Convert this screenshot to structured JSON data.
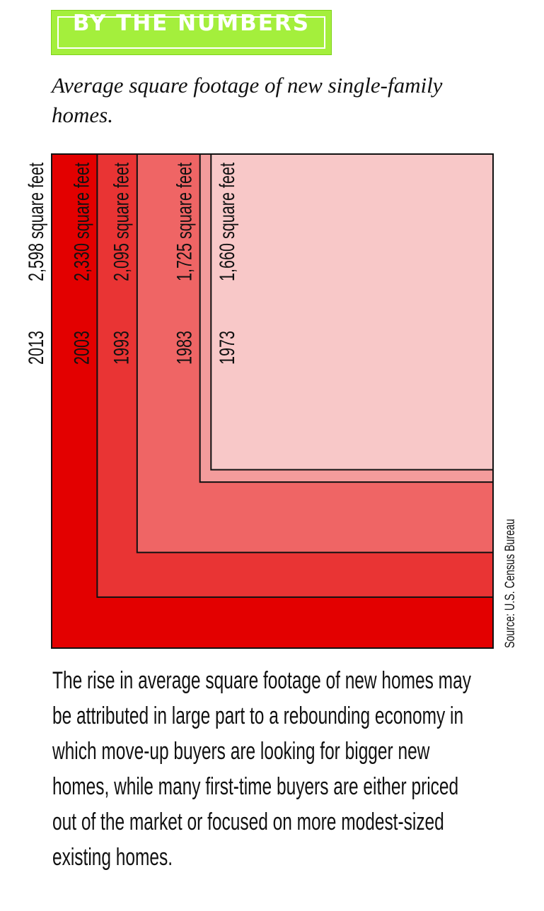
{
  "header": {
    "title": "BY THE NUMBERS",
    "subtitle": "Average square footage of new single-family homes."
  },
  "chart_data": {
    "type": "nested-rect",
    "categories": [
      "2013",
      "2003",
      "1993",
      "1983",
      "1973"
    ],
    "values": [
      2598,
      2330,
      2095,
      1725,
      1660
    ],
    "value_labels": [
      "2,598 square feet",
      "2,330 square feet",
      "2,095 square feet",
      "1,725 square feet",
      "1,660 square feet"
    ],
    "colors": [
      "#e30000",
      "#e93434",
      "#ef6565",
      "#f39c9c",
      "#f8c8c8"
    ],
    "source": "Source: U.S. Census Bureau"
  },
  "body": "The rise in average square footage of new homes may be attributed in large part to a rebounding economy in which move-up buyers are looking for bigger new homes, while many first-time buyers are either priced out of the market or focused on more modest-sized existing homes."
}
